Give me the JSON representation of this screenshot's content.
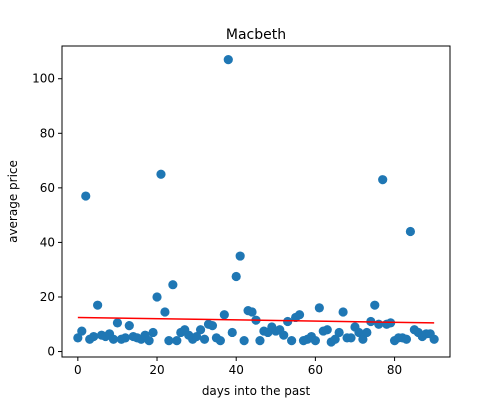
{
  "chart_data": {
    "type": "scatter",
    "title": "Macbeth",
    "xlabel": "days into the past",
    "ylabel": "average price",
    "xlim": [
      -4,
      94
    ],
    "ylim": [
      -2,
      112
    ],
    "xticks": [
      0,
      20,
      40,
      60,
      80
    ],
    "yticks": [
      0,
      20,
      40,
      60,
      80,
      100
    ],
    "grid": false,
    "colors": {
      "points": "#1f77b4",
      "trend": "#ff0000"
    },
    "series": [
      {
        "type": "scatter",
        "points": [
          [
            0,
            5
          ],
          [
            1,
            7.5
          ],
          [
            2,
            57
          ],
          [
            3,
            4.5
          ],
          [
            4,
            5.5
          ],
          [
            5,
            17
          ],
          [
            6,
            6
          ],
          [
            7,
            5.5
          ],
          [
            8,
            6.5
          ],
          [
            9,
            4.5
          ],
          [
            10,
            10.5
          ],
          [
            11,
            4.5
          ],
          [
            12,
            5
          ],
          [
            13,
            9.5
          ],
          [
            14,
            5.5
          ],
          [
            15,
            5
          ],
          [
            16,
            4.5
          ],
          [
            17,
            6
          ],
          [
            18,
            4
          ],
          [
            19,
            7
          ],
          [
            20,
            20
          ],
          [
            21,
            65
          ],
          [
            22,
            14.5
          ],
          [
            23,
            4
          ],
          [
            24,
            24.5
          ],
          [
            25,
            4
          ],
          [
            26,
            7
          ],
          [
            27,
            8
          ],
          [
            28,
            6
          ],
          [
            29,
            4.5
          ],
          [
            30,
            5.5
          ],
          [
            31,
            8
          ],
          [
            32,
            4.5
          ],
          [
            33,
            10
          ],
          [
            34,
            9.5
          ],
          [
            35,
            5
          ],
          [
            36,
            4
          ],
          [
            37,
            13.5
          ],
          [
            38,
            107
          ],
          [
            39,
            7
          ],
          [
            40,
            27.5
          ],
          [
            41,
            35
          ],
          [
            42,
            4
          ],
          [
            43,
            15
          ],
          [
            44,
            14.5
          ],
          [
            45,
            11.5
          ],
          [
            46,
            4
          ],
          [
            47,
            7.5
          ],
          [
            48,
            7
          ],
          [
            49,
            9
          ],
          [
            50,
            7.5
          ],
          [
            51,
            8
          ],
          [
            52,
            6
          ],
          [
            53,
            11
          ],
          [
            54,
            4
          ],
          [
            55,
            12.5
          ],
          [
            56,
            13.5
          ],
          [
            57,
            4
          ],
          [
            58,
            4.5
          ],
          [
            59,
            5.5
          ],
          [
            60,
            4
          ],
          [
            61,
            16
          ],
          [
            62,
            7.5
          ],
          [
            63,
            8
          ],
          [
            64,
            3.5
          ],
          [
            65,
            4.5
          ],
          [
            66,
            7
          ],
          [
            67,
            14.5
          ],
          [
            68,
            5
          ],
          [
            69,
            5
          ],
          [
            70,
            9
          ],
          [
            71,
            7
          ],
          [
            72,
            4.5
          ],
          [
            73,
            7
          ],
          [
            74,
            11
          ],
          [
            75,
            17
          ],
          [
            76,
            10
          ],
          [
            77,
            63
          ],
          [
            78,
            10
          ],
          [
            79,
            10.5
          ],
          [
            80,
            4
          ],
          [
            81,
            5
          ],
          [
            82,
            5
          ],
          [
            83,
            4.5
          ],
          [
            84,
            44
          ],
          [
            85,
            8
          ],
          [
            86,
            7
          ],
          [
            87,
            5.5
          ],
          [
            88,
            6.5
          ],
          [
            89,
            6.5
          ],
          [
            90,
            4.5
          ]
        ]
      },
      {
        "type": "line",
        "points": [
          [
            0,
            12.5
          ],
          [
            90,
            10.5
          ]
        ]
      }
    ]
  }
}
